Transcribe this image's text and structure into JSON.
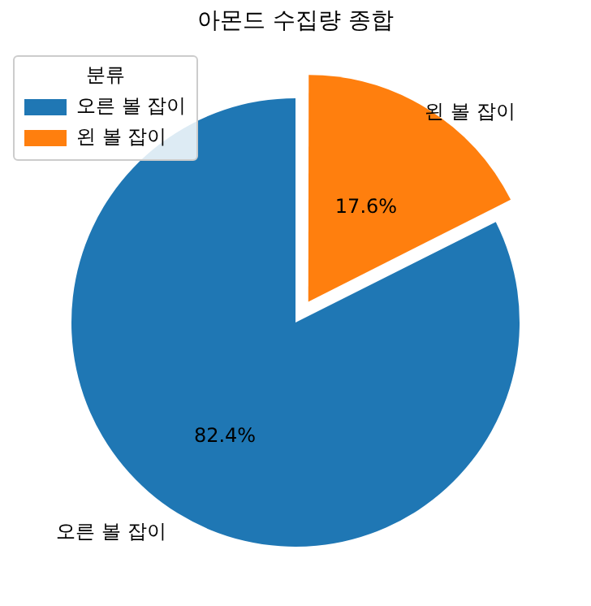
{
  "chart_data": {
    "type": "pie",
    "title": "아몬드 수집량 종합",
    "legend_title": "분류",
    "legend": "top left",
    "categories": [
      "오른 볼 잡이",
      "왼 볼 잡이"
    ],
    "values": [
      82.4,
      17.6
    ],
    "colors": [
      "#1f77b4",
      "#ff7f0e"
    ],
    "value_labels": [
      "82.4%",
      "17.6%"
    ]
  }
}
